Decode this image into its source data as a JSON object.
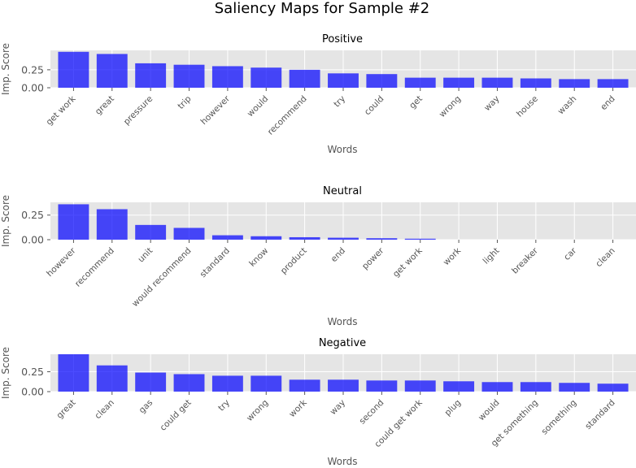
{
  "figure": {
    "title": "Saliency Maps for Sample #2",
    "colors": {
      "bar": "#0000ff",
      "axes_bg": "#e5e5e5",
      "grid": "#ffffff",
      "text": "#555555"
    }
  },
  "chart_data": [
    {
      "type": "bar",
      "title": "Positive",
      "xlabel": "Words",
      "ylabel": "Imp. Score",
      "ylim": [
        0,
        0.52
      ],
      "yticks": [
        0.0,
        0.25
      ],
      "ytick_labels": [
        "0.00",
        "0.25"
      ],
      "categories": [
        "get work",
        "great",
        "pressure",
        "trip",
        "however",
        "would",
        "recommend",
        "try",
        "could",
        "get",
        "wrong",
        "way",
        "house",
        "wash",
        "end"
      ],
      "values": [
        0.5,
        0.47,
        0.34,
        0.32,
        0.3,
        0.28,
        0.25,
        0.2,
        0.19,
        0.14,
        0.14,
        0.14,
        0.13,
        0.12,
        0.12
      ]
    },
    {
      "type": "bar",
      "title": "Neutral",
      "xlabel": "Words",
      "ylabel": "Imp. Score",
      "ylim": [
        0,
        0.38
      ],
      "yticks": [
        0.0,
        0.25
      ],
      "ytick_labels": [
        "0.00",
        "0.25"
      ],
      "categories": [
        "however",
        "recommend",
        "unit",
        "would recommend",
        "standard",
        "know",
        "product",
        "end",
        "power",
        "get work",
        "work",
        "light",
        "breaker",
        "car",
        "clean"
      ],
      "values": [
        0.36,
        0.31,
        0.15,
        0.12,
        0.045,
        0.035,
        0.025,
        0.02,
        0.015,
        0.01,
        0,
        0,
        0,
        0,
        0
      ]
    },
    {
      "type": "bar",
      "title": "Negative",
      "xlabel": "Words",
      "ylabel": "Imp. Score",
      "ylim": [
        0,
        0.47
      ],
      "yticks": [
        0.0,
        0.25
      ],
      "ytick_labels": [
        "0.00",
        "0.25"
      ],
      "categories": [
        "great",
        "clean",
        "gas",
        "could get",
        "try",
        "wrong",
        "work",
        "way",
        "second",
        "could get work",
        "plug",
        "would",
        "get something",
        "something",
        "standard"
      ],
      "values": [
        0.47,
        0.33,
        0.24,
        0.22,
        0.2,
        0.2,
        0.15,
        0.15,
        0.14,
        0.14,
        0.13,
        0.12,
        0.12,
        0.11,
        0.1
      ]
    }
  ]
}
